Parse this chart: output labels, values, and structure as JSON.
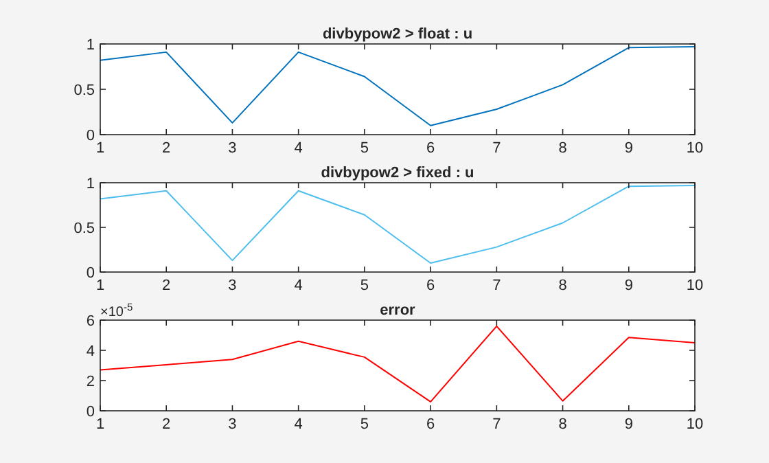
{
  "chart_data": [
    {
      "type": "line",
      "title": "divbypow2 > float : u",
      "x": [
        1,
        2,
        3,
        4,
        5,
        6,
        7,
        8,
        9,
        10
      ],
      "series": [
        {
          "color": "#0072bd",
          "values": [
            0.82,
            0.91,
            0.13,
            0.91,
            0.64,
            0.1,
            0.28,
            0.55,
            0.96,
            0.97
          ]
        }
      ],
      "xlim": [
        1,
        10
      ],
      "xticks": [
        1,
        2,
        3,
        4,
        5,
        6,
        7,
        8,
        9,
        10
      ],
      "ylim": [
        0,
        1
      ],
      "yticks": [
        0,
        0.5,
        1
      ],
      "grid": false
    },
    {
      "type": "line",
      "title": "divbypow2 > fixed : u",
      "x": [
        1,
        2,
        3,
        4,
        5,
        6,
        7,
        8,
        9,
        10
      ],
      "series": [
        {
          "color": "#4dbeee",
          "values": [
            0.82,
            0.91,
            0.13,
            0.91,
            0.64,
            0.1,
            0.28,
            0.55,
            0.96,
            0.97
          ]
        }
      ],
      "xlim": [
        1,
        10
      ],
      "xticks": [
        1,
        2,
        3,
        4,
        5,
        6,
        7,
        8,
        9,
        10
      ],
      "ylim": [
        0,
        1
      ],
      "yticks": [
        0,
        0.5,
        1
      ],
      "grid": false
    },
    {
      "type": "line",
      "title": "error",
      "x": [
        1,
        2,
        3,
        4,
        5,
        6,
        7,
        8,
        9,
        10
      ],
      "series": [
        {
          "color": "#ff0000",
          "values": [
            2.7,
            3.05,
            3.4,
            4.6,
            3.55,
            0.6,
            5.6,
            0.65,
            4.85,
            4.5
          ]
        }
      ],
      "xlim": [
        1,
        10
      ],
      "xticks": [
        1,
        2,
        3,
        4,
        5,
        6,
        7,
        8,
        9,
        10
      ],
      "ylim": [
        0,
        6
      ],
      "yticks": [
        0,
        2,
        4,
        6
      ],
      "grid": false,
      "annotations": [
        "×10$^{-5}$"
      ]
    }
  ]
}
